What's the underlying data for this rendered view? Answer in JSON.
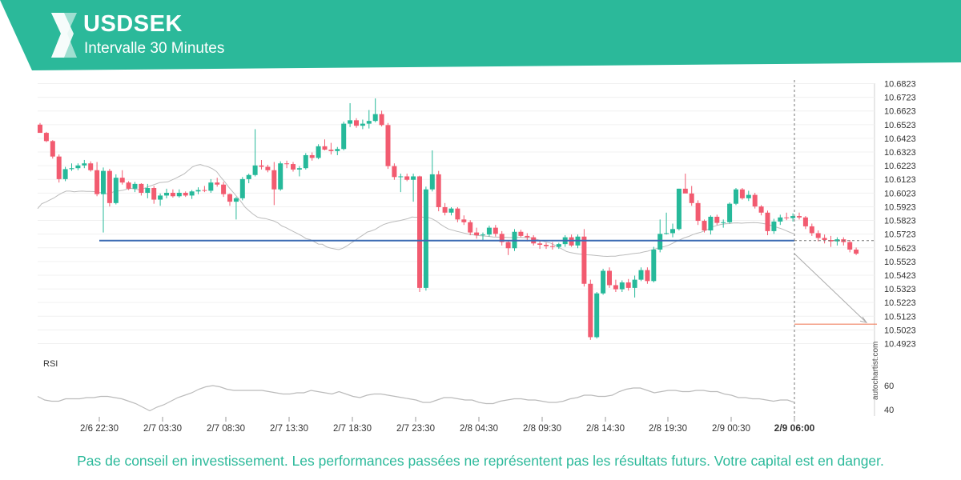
{
  "header": {
    "symbol": "USDSEK",
    "interval": "Intervalle 30 Minutes"
  },
  "footer": {
    "disclaimer": "Pas de conseil en investissement. Les performances passées ne représentent pas les résultats futurs. Votre capital est en danger."
  },
  "watermark": "autochartist.com",
  "colors": {
    "brand": "#2bb99a",
    "up": "#26b99a",
    "down": "#f25b70",
    "support_line": "#3c6bb4",
    "target_line": "#f08060",
    "moving_average": "#bbbbbb",
    "rsi_line": "#bbbbbb"
  },
  "chart_data": {
    "type": "candlestick",
    "price_ticks": [
      "10.6823",
      "10.6723",
      "10.6623",
      "10.6523",
      "10.6423",
      "10.6323",
      "10.6223",
      "10.6123",
      "10.6023",
      "10.5923",
      "10.5823",
      "10.5723",
      "10.5623",
      "10.5523",
      "10.5423",
      "10.5323",
      "10.5223",
      "10.5123",
      "10.5023",
      "10.4923"
    ],
    "price_range": [
      10.4923,
      10.6823
    ],
    "x_ticks": [
      "2/6 22:30",
      "2/7 03:30",
      "2/7 08:30",
      "2/7 13:30",
      "2/7 18:30",
      "2/7 23:30",
      "2/8 04:30",
      "2/8 09:30",
      "2/8 14:30",
      "2/8 19:30",
      "2/9 00:30",
      "2/9 06:00"
    ],
    "current_time_label": "2/9 06:00",
    "support_level": 10.5676,
    "target_level": 10.5065,
    "rsi": {
      "label": "RSI",
      "ticks": [
        60,
        40
      ],
      "range": [
        30,
        72
      ],
      "values": [
        51,
        48,
        47,
        47,
        49,
        49,
        49,
        50,
        50,
        51,
        51,
        50,
        49,
        47,
        45,
        42,
        39,
        42,
        44,
        47,
        50,
        52,
        54,
        57,
        59,
        60,
        59,
        57,
        56,
        56,
        56,
        56,
        56,
        55,
        54,
        53,
        53,
        54,
        54,
        56,
        55,
        54,
        53,
        55,
        53,
        51,
        50,
        52,
        53,
        53,
        52,
        51,
        50,
        49,
        48,
        46,
        46,
        48,
        50,
        50,
        49,
        48,
        48,
        46,
        45,
        45,
        47,
        48,
        49,
        49,
        48,
        48,
        47,
        46,
        46,
        47,
        49,
        50,
        52,
        52,
        51,
        51,
        52,
        55,
        57,
        58,
        58,
        56,
        54,
        55,
        56,
        56,
        55,
        55,
        56,
        56,
        55,
        55,
        53,
        52,
        50,
        50,
        49,
        49,
        48,
        47,
        48,
        48,
        46
      ]
    },
    "moving_average": [
      10.5909,
      10.5945,
      10.5957,
      10.5973,
      10.5987,
      10.6007,
      10.6024,
      10.6037,
      10.6037,
      10.6032,
      10.6036,
      10.6037,
      10.6035,
      10.6035,
      10.6034,
      10.6028,
      10.6024,
      10.6018,
      10.6025,
      10.6036,
      10.6039,
      10.6044,
      10.6052,
      10.6057,
      10.6052,
      10.6047,
      10.6054,
      10.6068,
      10.6078,
      10.6089,
      10.61,
      10.6102,
      10.6105,
      10.6119,
      10.6132,
      10.6148,
      10.6163,
      10.6188,
      10.6213,
      10.6226,
      10.6232,
      10.6222,
      10.6214,
      10.62,
      10.618,
      10.614,
      10.6105,
      10.6065,
      10.603,
      10.5995,
      10.596,
      10.592,
      10.5893,
      10.5868,
      10.5848,
      10.584,
      10.5837,
      10.5828,
      10.582,
      10.5806,
      10.5783,
      10.5771,
      10.5755,
      10.574,
      10.5725,
      10.5709,
      10.569,
      10.5683,
      10.5667,
      10.565,
      10.5649,
      10.563,
      10.5621,
      10.5615,
      10.561,
      10.562,
      10.5636,
      10.5657,
      10.5676,
      10.5698,
      10.5717,
      10.5738,
      10.5747,
      10.5758,
      10.5777,
      10.5793,
      10.5803,
      10.5811,
      10.5817,
      10.5822,
      10.5829,
      10.5836,
      10.5848,
      10.5846,
      10.585,
      10.5845,
      10.5845,
      10.5834,
      10.5818,
      10.5795,
      10.5776,
      10.576,
      10.5752,
      10.5744,
      10.5737,
      10.5729,
      10.5723,
      10.5718,
      10.5713,
      10.5711,
      10.5709,
      10.5706,
      10.5702,
      10.5701,
      10.5701,
      10.57,
      10.5698,
      10.5698,
      10.57,
      10.5698,
      10.5697,
      10.5697,
      10.5689,
      10.5682,
      10.5673,
      10.5665,
      10.5658,
      10.5644,
      10.5628,
      10.5612,
      10.5596,
      10.5588,
      10.5583,
      10.5578,
      10.5575,
      10.5572,
      10.557,
      10.5567,
      10.5565,
      10.5562,
      10.556,
      10.5562,
      10.5562,
      10.5567,
      10.557,
      10.5574,
      10.5579,
      10.5583,
      10.5586,
      10.5593,
      10.5599,
      10.5608,
      10.5617,
      10.5625,
      10.5632,
      10.5641,
      10.5655,
      10.5671,
      10.5683,
      10.5697,
      10.5706,
      10.5719,
      10.5729,
      10.5737,
      10.5748,
      10.5762,
      10.5778,
      10.5787,
      10.5794,
      10.5798,
      10.58,
      10.5804,
      10.5805,
      10.5803,
      10.5805,
      10.5806,
      10.5807,
      10.5806,
      10.5802,
      10.5797,
      10.5789,
      10.5779,
      10.577,
      10.576,
      10.5748,
      10.5735,
      10.5725
    ],
    "candles": [
      [
        10.6523,
        10.6535,
        10.6465,
        10.6463
      ],
      [
        10.6463,
        10.647,
        10.6395,
        10.6403
      ],
      [
        10.6403,
        10.641,
        10.6275,
        10.629
      ],
      [
        10.629,
        10.6305,
        10.61,
        10.6125
      ],
      [
        10.6125,
        10.6215,
        10.611,
        10.6198
      ],
      [
        10.6198,
        10.624,
        10.6185,
        10.6205
      ],
      [
        10.6205,
        10.624,
        10.619,
        10.6225
      ],
      [
        10.6225,
        10.6265,
        10.6205,
        10.624
      ],
      [
        10.624,
        10.6255,
        10.618,
        10.619
      ],
      [
        10.619,
        10.625,
        10.6,
        10.6015
      ],
      [
        10.6015,
        10.621,
        10.5735,
        10.6185
      ],
      [
        10.6185,
        10.62,
        10.5925,
        10.595
      ],
      [
        10.595,
        10.616,
        10.594,
        10.6135
      ],
      [
        10.6135,
        10.619,
        10.6085,
        10.61
      ],
      [
        10.61,
        10.611,
        10.6045,
        10.6055
      ],
      [
        10.6055,
        10.6105,
        10.603,
        10.609
      ],
      [
        10.609,
        10.6095,
        10.6005,
        10.6025
      ],
      [
        10.6025,
        10.609,
        10.5985,
        10.606
      ],
      [
        10.606,
        10.6075,
        10.5945,
        10.5975
      ],
      [
        10.5975,
        10.602,
        10.593,
        10.6005
      ],
      [
        10.6005,
        10.6055,
        10.5985,
        10.6025
      ],
      [
        10.6025,
        10.605,
        10.599,
        10.6
      ],
      [
        10.6,
        10.605,
        10.599,
        10.6025
      ],
      [
        10.6025,
        10.6035,
        10.5995,
        10.6005
      ],
      [
        10.6005,
        10.6045,
        10.598,
        10.6035
      ],
      [
        10.6035,
        10.6065,
        10.6015,
        10.6045
      ],
      [
        10.6045,
        10.6075,
        10.603,
        10.604
      ],
      [
        10.604,
        10.6125,
        10.6025,
        10.61
      ],
      [
        10.61,
        10.6135,
        10.607,
        10.6085
      ],
      [
        10.6085,
        10.6105,
        10.5995,
        10.6015
      ],
      [
        10.6015,
        10.602,
        10.593,
        10.596
      ],
      [
        10.596,
        10.5995,
        10.583,
        10.5985
      ],
      [
        10.5985,
        10.614,
        10.597,
        10.6125
      ],
      [
        10.6125,
        10.6165,
        10.6095,
        10.6155
      ],
      [
        10.6155,
        10.649,
        10.6145,
        10.6225
      ],
      [
        10.6225,
        10.6265,
        10.6195,
        10.6215
      ],
      [
        10.6215,
        10.623,
        10.6175,
        10.619
      ],
      [
        10.619,
        10.625,
        10.5935,
        10.605
      ],
      [
        10.605,
        10.6255,
        10.604,
        10.624
      ],
      [
        10.624,
        10.626,
        10.6205,
        10.6235
      ],
      [
        10.6235,
        10.625,
        10.618,
        10.6195
      ],
      [
        10.6195,
        10.622,
        10.6145,
        10.6205
      ],
      [
        10.6205,
        10.6315,
        10.6195,
        10.63
      ],
      [
        10.63,
        10.632,
        10.626,
        10.628
      ],
      [
        10.628,
        10.638,
        10.627,
        10.6365
      ],
      [
        10.6365,
        10.6415,
        10.6335,
        10.634
      ],
      [
        10.634,
        10.639,
        10.6305,
        10.633
      ],
      [
        10.633,
        10.636,
        10.63,
        10.6345
      ],
      [
        10.6345,
        10.6545,
        10.6335,
        10.653
      ],
      [
        10.653,
        10.668,
        10.6505,
        10.6555
      ],
      [
        10.6555,
        10.657,
        10.65,
        10.6515
      ],
      [
        10.6515,
        10.656,
        10.649,
        10.653
      ],
      [
        10.653,
        10.663,
        10.6495,
        10.655
      ],
      [
        10.655,
        10.6715,
        10.654,
        10.66
      ],
      [
        10.66,
        10.6625,
        10.651,
        10.652
      ],
      [
        10.652,
        10.6535,
        10.62,
        10.622
      ],
      [
        10.622,
        10.624,
        10.612,
        10.614
      ],
      [
        10.614,
        10.6165,
        10.603,
        10.6145
      ],
      [
        10.6145,
        10.6165,
        10.611,
        10.612
      ],
      [
        10.612,
        10.6165,
        10.596,
        10.6145
      ],
      [
        10.6145,
        10.615,
        10.53,
        10.533
      ],
      [
        10.533,
        10.607,
        10.531,
        10.605
      ],
      [
        10.605,
        10.6335,
        10.6035,
        10.616
      ],
      [
        10.616,
        10.6185,
        10.589,
        10.592
      ],
      [
        10.592,
        10.595,
        10.586,
        10.588
      ],
      [
        10.588,
        10.592,
        10.586,
        10.591
      ],
      [
        10.591,
        10.592,
        10.581,
        10.583
      ],
      [
        10.583,
        10.586,
        10.579,
        10.581
      ],
      [
        10.581,
        10.5825,
        10.5715,
        10.5735
      ],
      [
        10.5735,
        10.577,
        10.569,
        10.5715
      ],
      [
        10.5715,
        10.5735,
        10.5675,
        10.572
      ],
      [
        10.572,
        10.5785,
        10.5705,
        10.577
      ],
      [
        10.577,
        10.579,
        10.5705,
        10.5725
      ],
      [
        10.5725,
        10.5745,
        10.564,
        10.5665
      ],
      [
        10.5665,
        10.568,
        10.557,
        10.562
      ],
      [
        10.562,
        10.576,
        10.56,
        10.574
      ],
      [
        10.574,
        10.5755,
        10.57,
        10.571
      ],
      [
        10.571,
        10.573,
        10.567,
        10.57
      ],
      [
        10.57,
        10.5715,
        10.564,
        10.5655
      ],
      [
        10.5655,
        10.5675,
        10.5615,
        10.5645
      ],
      [
        10.5645,
        10.566,
        10.5615,
        10.5635
      ],
      [
        10.5635,
        10.5665,
        10.561,
        10.563
      ],
      [
        10.563,
        10.566,
        10.5615,
        10.565
      ],
      [
        10.565,
        10.5715,
        10.563,
        10.57
      ],
      [
        10.57,
        10.572,
        10.563,
        10.564
      ],
      [
        10.564,
        10.572,
        10.562,
        10.5705
      ],
      [
        10.5705,
        10.576,
        10.534,
        10.536
      ],
      [
        10.536,
        10.539,
        10.495,
        10.497
      ],
      [
        10.497,
        10.53,
        10.496,
        10.529
      ],
      [
        10.529,
        10.547,
        10.528,
        10.5455
      ],
      [
        10.5455,
        10.548,
        10.533,
        10.535
      ],
      [
        10.535,
        10.539,
        10.53,
        10.532
      ],
      [
        10.532,
        10.5385,
        10.53,
        10.537
      ],
      [
        10.537,
        10.5395,
        10.531,
        10.533
      ],
      [
        10.533,
        10.542,
        10.526,
        10.539
      ],
      [
        10.539,
        10.548,
        10.538,
        10.546
      ],
      [
        10.546,
        10.548,
        10.536,
        10.538
      ],
      [
        10.538,
        10.563,
        10.537,
        10.561
      ],
      [
        10.561,
        10.583,
        10.559,
        10.5725
      ],
      [
        10.5725,
        10.588,
        10.572,
        10.573
      ],
      [
        10.573,
        10.58,
        10.57,
        10.576
      ],
      [
        10.576,
        10.6055,
        10.575,
        10.6055
      ],
      [
        10.6055,
        10.6165,
        10.6035,
        10.602
      ],
      [
        10.602,
        10.6075,
        10.593,
        10.595
      ],
      [
        10.595,
        10.597,
        10.579,
        10.582
      ],
      [
        10.582,
        10.583,
        10.5735,
        10.575
      ],
      [
        10.575,
        10.586,
        10.572,
        10.585
      ],
      [
        10.585,
        10.5865,
        10.579,
        10.5805
      ],
      [
        10.5805,
        10.583,
        10.577,
        10.581
      ],
      [
        10.581,
        10.5955,
        10.58,
        10.5945
      ],
      [
        10.5945,
        10.606,
        10.5935,
        10.605
      ],
      [
        10.605,
        10.606,
        10.5975,
        10.5985
      ],
      [
        10.5985,
        10.604,
        10.5965,
        10.601
      ],
      [
        10.601,
        10.6025,
        10.591,
        10.5925
      ],
      [
        10.5925,
        10.5935,
        10.586,
        10.588
      ],
      [
        10.588,
        10.5895,
        10.5715,
        10.5745
      ],
      [
        10.5745,
        10.5835,
        10.5725,
        10.5815
      ],
      [
        10.5815,
        10.5865,
        10.579,
        10.5845
      ],
      [
        10.5845,
        10.588,
        10.5825,
        10.584
      ],
      [
        10.584,
        10.5875,
        10.5815,
        10.5855
      ],
      [
        10.5855,
        10.588,
        10.583,
        10.5845
      ],
      [
        10.5845,
        10.5855,
        10.576,
        10.578
      ],
      [
        10.578,
        10.58,
        10.571,
        10.573
      ],
      [
        10.573,
        10.575,
        10.567,
        10.5695
      ],
      [
        10.5695,
        10.572,
        10.5655,
        10.568
      ],
      [
        10.568,
        10.571,
        10.563,
        10.567
      ],
      [
        10.567,
        10.57,
        10.564,
        10.5685
      ],
      [
        10.5685,
        10.57,
        10.564,
        10.5665
      ],
      [
        10.5665,
        10.568,
        10.559,
        10.561
      ],
      [
        10.561,
        10.5625,
        10.557,
        10.558
      ]
    ]
  }
}
